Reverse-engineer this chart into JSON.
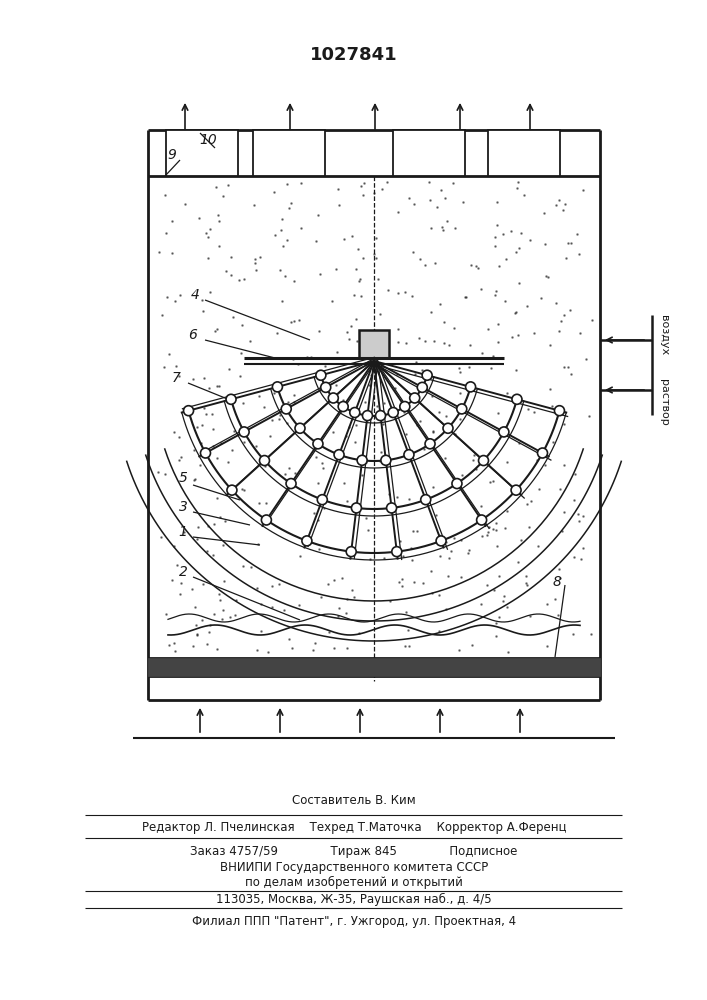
{
  "title": "1027841",
  "bg_color": "#ffffff",
  "drawing_color": "#1a1a1a",
  "footer": {
    "line1": "Составитель В. Ким",
    "line2": "Редактор Л. Пчелинская    Техред Т.Маточка    Корректор А.Ференц",
    "line3": "Заказ 4757/59              Тираж 845              Подписное",
    "line4": "ВНИИПИ Государственного комитета СССР",
    "line5": "по делам изобретений и открытий",
    "line6": "113035, Москва, Ж-35, Раушская наб., д. 4/5",
    "line7": "Филиал ППП \"Патент\", г. Ужгород, ул. Проектная, 4"
  },
  "label_vozdukh": "воздух",
  "label_rastvor": "раствор"
}
